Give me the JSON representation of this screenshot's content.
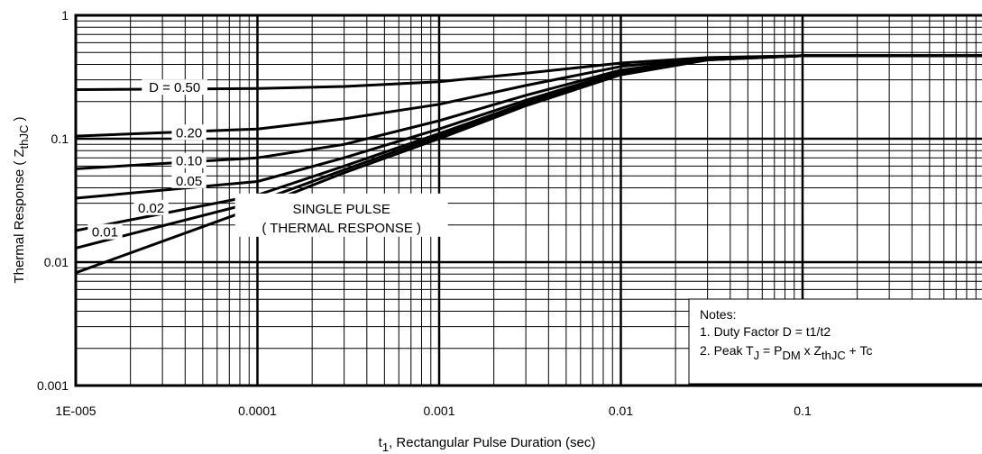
{
  "chart_data": {
    "type": "line",
    "title": "",
    "xscale": "log",
    "yscale": "log",
    "xlim": [
      1e-05,
      1
    ],
    "ylim": [
      0.001,
      1
    ],
    "grid": true,
    "x_ticks": [
      {
        "value": 1e-05,
        "label": "1E-005"
      },
      {
        "value": 0.0001,
        "label": "0.0001"
      },
      {
        "value": 0.001,
        "label": "0.001"
      },
      {
        "value": 0.01,
        "label": "0.01"
      },
      {
        "value": 0.1,
        "label": "0.1"
      }
    ],
    "y_ticks": [
      {
        "value": 1,
        "label": "1"
      },
      {
        "value": 0.1,
        "label": "0.1"
      },
      {
        "value": 0.01,
        "label": "0.01"
      },
      {
        "value": 0.001,
        "label": "0.001"
      }
    ],
    "xlabel": {
      "pre": "t",
      "sub": "1",
      "post": ", Rectangular Pulse Duration (sec)"
    },
    "ylabel": {
      "pre": "Thermal Response  ( Z",
      "sub": "thJC",
      "post": " )"
    },
    "series": [
      {
        "name": "D = 0.50",
        "x": [
          1e-05,
          0.0001,
          0.0003,
          0.001,
          0.003,
          0.01,
          0.03,
          0.1,
          1
        ],
        "y": [
          0.25,
          0.255,
          0.265,
          0.29,
          0.34,
          0.41,
          0.455,
          0.47,
          0.47
        ]
      },
      {
        "name": "0.20",
        "x": [
          1e-05,
          0.0001,
          0.0003,
          0.001,
          0.003,
          0.01,
          0.03,
          0.1,
          1
        ],
        "y": [
          0.105,
          0.12,
          0.145,
          0.19,
          0.27,
          0.385,
          0.45,
          0.47,
          0.47
        ]
      },
      {
        "name": "0.10",
        "x": [
          1e-05,
          0.0001,
          0.0003,
          0.001,
          0.003,
          0.01,
          0.03,
          0.1,
          1
        ],
        "y": [
          0.057,
          0.07,
          0.09,
          0.14,
          0.225,
          0.36,
          0.445,
          0.47,
          0.47
        ]
      },
      {
        "name": "0.05",
        "x": [
          1e-05,
          0.0001,
          0.0003,
          0.001,
          0.003,
          0.01,
          0.03,
          0.1,
          1
        ],
        "y": [
          0.033,
          0.045,
          0.07,
          0.12,
          0.205,
          0.35,
          0.44,
          0.47,
          0.47
        ]
      },
      {
        "name": "0.02",
        "x": [
          1e-05,
          0.0001,
          0.0003,
          0.001,
          0.003,
          0.01,
          0.03,
          0.1,
          1
        ],
        "y": [
          0.018,
          0.035,
          0.06,
          0.11,
          0.195,
          0.34,
          0.44,
          0.47,
          0.47
        ]
      },
      {
        "name": "0.01",
        "x": [
          1e-05,
          0.0001,
          0.0003,
          0.001,
          0.003,
          0.01,
          0.03,
          0.1,
          1
        ],
        "y": [
          0.013,
          0.031,
          0.056,
          0.105,
          0.19,
          0.33,
          0.435,
          0.47,
          0.47
        ]
      },
      {
        "name": "SINGLE PULSE",
        "x": [
          1e-05,
          0.0001,
          0.0003,
          0.001,
          0.003,
          0.01,
          0.03,
          0.1,
          1
        ],
        "y": [
          0.0082,
          0.028,
          0.053,
          0.1,
          0.185,
          0.33,
          0.435,
          0.47,
          0.47
        ]
      }
    ],
    "curve_labels": [
      {
        "text": "D = 0.50",
        "x": 3.5e-05,
        "y": 0.26
      },
      {
        "text": "0.20",
        "x": 4.2e-05,
        "y": 0.112
      },
      {
        "text": "0.10",
        "x": 4.2e-05,
        "y": 0.066
      },
      {
        "text": "0.05",
        "x": 4.2e-05,
        "y": 0.0455
      },
      {
        "text": "0.02",
        "x": 2.6e-05,
        "y": 0.0275
      },
      {
        "text": "0.01",
        "x": 1.45e-05,
        "y": 0.0175
      }
    ],
    "annotation": {
      "line1": "SINGLE PULSE",
      "line2": "( THERMAL RESPONSE )",
      "x": 0.00029,
      "y": 0.019
    },
    "notes": {
      "title": "Notes:",
      "item1": "1. Duty Factor D = t1/t2",
      "item2": {
        "a": "2. Peak T",
        "a_sub": "J",
        "b": " = P",
        "b_sub": "DM",
        "c": " x Z",
        "c_sub": "thJC",
        "d": " + Tc"
      }
    }
  }
}
